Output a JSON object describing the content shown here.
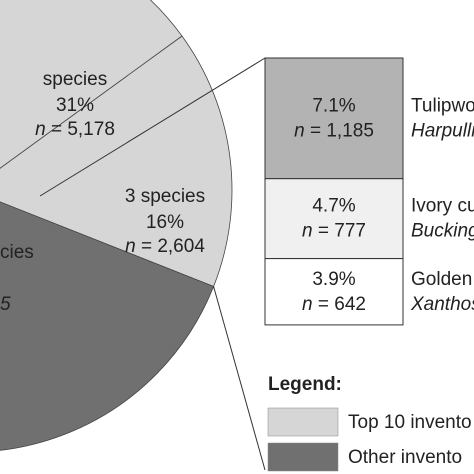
{
  "chart_data": {
    "type": "pie",
    "slices": [
      {
        "label": "species",
        "value": 31,
        "value_label": "31%",
        "n_label": "n = 5,178",
        "color": "#d6d6d6"
      },
      {
        "label": "3 species",
        "value": 16,
        "value_label": "16%",
        "n_label": "n = 2,604",
        "color": "#d6d6d6"
      },
      {
        "label": "cies",
        "value": 53,
        "n_label": "5",
        "color": "#707070"
      }
    ],
    "breakdown": [
      {
        "value": 7.1,
        "value_label": "7.1%",
        "n_label": "n = 1,185",
        "name": "Tulipwo",
        "species": "Harpulli",
        "color": "#b3b3b3"
      },
      {
        "value": 4.7,
        "value_label": "4.7%",
        "n_label": "n = 777",
        "name": "Ivory cu",
        "species": "Bucking",
        "color": "#f0f0f0"
      },
      {
        "value": 3.9,
        "value_label": "3.9%",
        "n_label": "n = 642",
        "name": "Golden",
        "species": "Xanthos",
        "color": "#ffffff"
      }
    ],
    "legend_title": "Legend:",
    "legend": [
      {
        "name": "Top 10 invento",
        "color": "#d6d6d6"
      },
      {
        "name": "Other invento",
        "color": "#707070"
      }
    ]
  }
}
